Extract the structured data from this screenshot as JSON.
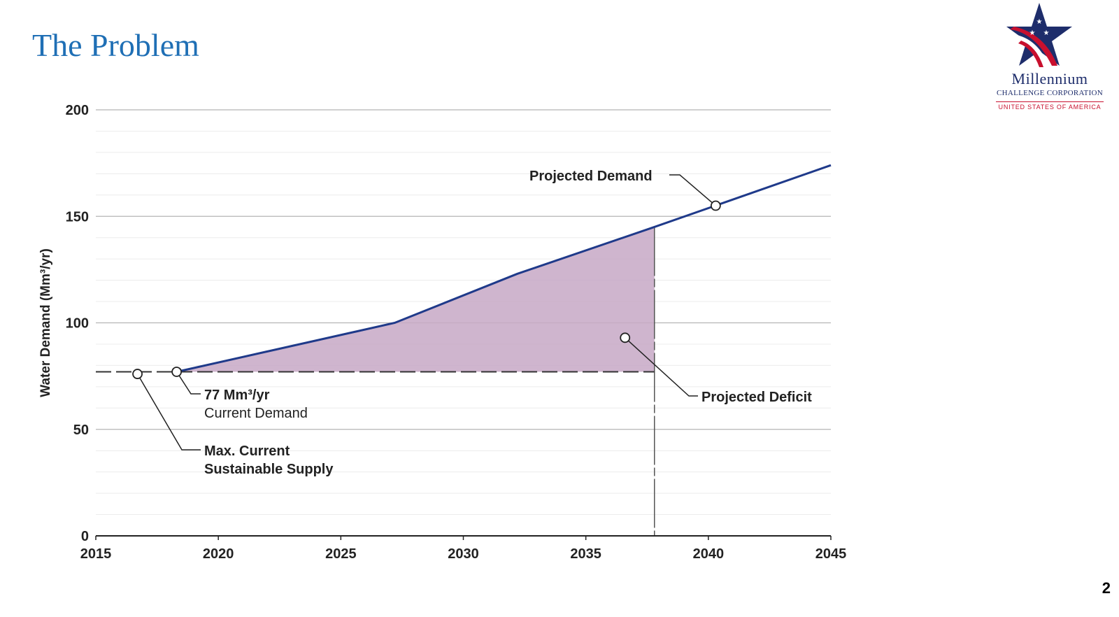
{
  "slide": {
    "title": "The Problem",
    "page_number": "2"
  },
  "logo": {
    "line1": "Millennium",
    "line2": "CHALLENGE CORPORATION",
    "line3": "UNITED STATES OF AMERICA",
    "colors": {
      "navy": "#1E2D6B",
      "red": "#C8102E"
    }
  },
  "chart_data": {
    "type": "area",
    "title": "",
    "xlabel": "",
    "ylabel": "Water Demand (Mm³/yr)",
    "xlim": [
      2015,
      2045
    ],
    "ylim": [
      0,
      200
    ],
    "x_ticks": [
      2015,
      2020,
      2025,
      2030,
      2035,
      2040,
      2045
    ],
    "y_ticks": [
      0,
      50,
      100,
      150,
      200
    ],
    "minor_grid_step": 10,
    "grid": true,
    "series": [
      {
        "name": "Projected Demand",
        "kind": "line",
        "color": "#1F3A8A",
        "x": [
          2018.3,
          2027.2,
          2032.2,
          2037.8,
          2045
        ],
        "values": [
          77,
          100,
          123,
          145,
          174
        ]
      },
      {
        "name": "Max. Current Sustainable Supply",
        "kind": "dashed-line",
        "color": "#333333",
        "x": [
          2015,
          2037.8
        ],
        "values": [
          77,
          77
        ]
      }
    ],
    "deficit_area": {
      "name": "Projected Deficit",
      "color": "#C7A8C6",
      "x_start": 2018.3,
      "x_end": 2037.8,
      "baseline": 77
    },
    "vertical_marker": {
      "x": 2037.8
    },
    "annotations": [
      {
        "id": "projected-demand",
        "lines": [
          "Projected Demand"
        ],
        "bold": true,
        "point": [
          2040.3,
          155
        ]
      },
      {
        "id": "current-demand",
        "lines": [
          "77 Mm³/yr",
          "Current Demand"
        ],
        "bold": false,
        "point": [
          2018.3,
          77
        ]
      },
      {
        "id": "sustainable-supply",
        "lines": [
          "Max. Current",
          "Sustainable Supply"
        ],
        "bold": true,
        "point": [
          2016.7,
          76
        ]
      },
      {
        "id": "projected-deficit",
        "lines": [
          "Projected Deficit"
        ],
        "bold": true,
        "point": [
          2036.6,
          93
        ]
      }
    ]
  }
}
